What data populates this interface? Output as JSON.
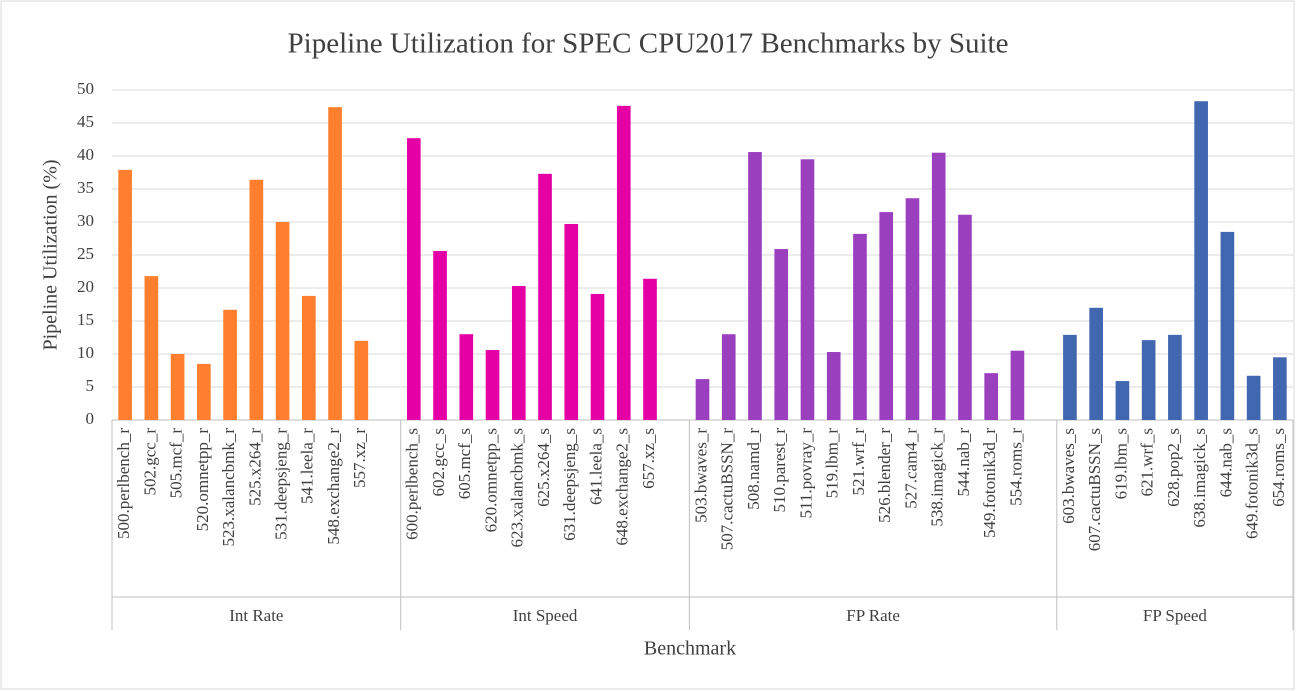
{
  "chart_data": {
    "type": "bar",
    "title": "Pipeline Utilization for SPEC CPU2017 Benchmarks by Suite",
    "y_label": "Pipeline Utilization (%)",
    "x_label": "Benchmark",
    "ylim": [
      0,
      50
    ],
    "yticks": [
      0,
      5,
      10,
      15,
      20,
      25,
      30,
      35,
      40,
      45,
      50
    ],
    "grid": true,
    "groups": [
      {
        "label": "Int Rate",
        "color": "#ff7f2e",
        "categories": [
          "500.perlbench_r",
          "502.gcc_r",
          "505.mcf_r",
          "520.omnetpp_r",
          "523.xalancbmk_r",
          "525.x264_r",
          "531.deepsjeng_r",
          "541.leela_r",
          "548.exchange2_r",
          "557.xz_r"
        ],
        "values": [
          37.9,
          21.8,
          10,
          8.5,
          16.7,
          36.4,
          30,
          18.8,
          47.4,
          12
        ]
      },
      {
        "label": "Int Speed",
        "color": "#e500a6",
        "categories": [
          "600.perlbench_s",
          "602.gcc_s",
          "605.mcf_s",
          "620.omnetpp_s",
          "623.xalancbmk_s",
          "625.x264_s",
          "631.deepsjeng_s",
          "641.leela_s",
          "648.exchange2_s",
          "657.xz_s"
        ],
        "values": [
          42.7,
          25.6,
          13,
          10.6,
          20.3,
          37.3,
          29.7,
          19.1,
          47.6,
          21.4
        ]
      },
      {
        "label": "FP Rate",
        "color": "#9a40bf",
        "categories": [
          "503.bwaves_r",
          "507.cactuBSSN_r",
          "508.namd_r",
          "510.parest_r",
          "511.povray_r",
          "519.lbm_r",
          "521.wrf_r",
          "526.blender_r",
          "527.cam4_r",
          "538.imagick_r",
          "544.nab_r",
          "549.fotonik3d_r",
          "554.roms_r"
        ],
        "values": [
          6.2,
          13,
          40.6,
          25.9,
          39.5,
          10.3,
          28.2,
          31.5,
          33.6,
          40.5,
          31.1,
          7.1,
          10.5
        ]
      },
      {
        "label": "FP Speed",
        "color": "#4167b1",
        "categories": [
          "603.bwaves_s",
          "607.cactuBSSN_s",
          "619.lbm_s",
          "621.wrf_s",
          "628.pop2_s",
          "638.imagick_s",
          "644.nab_s",
          "649.fotonik3d_s",
          "654.roms_s"
        ],
        "values": [
          12.9,
          17,
          5.9,
          12.1,
          12.9,
          48.3,
          28.5,
          6.7,
          9.5
        ]
      }
    ]
  }
}
